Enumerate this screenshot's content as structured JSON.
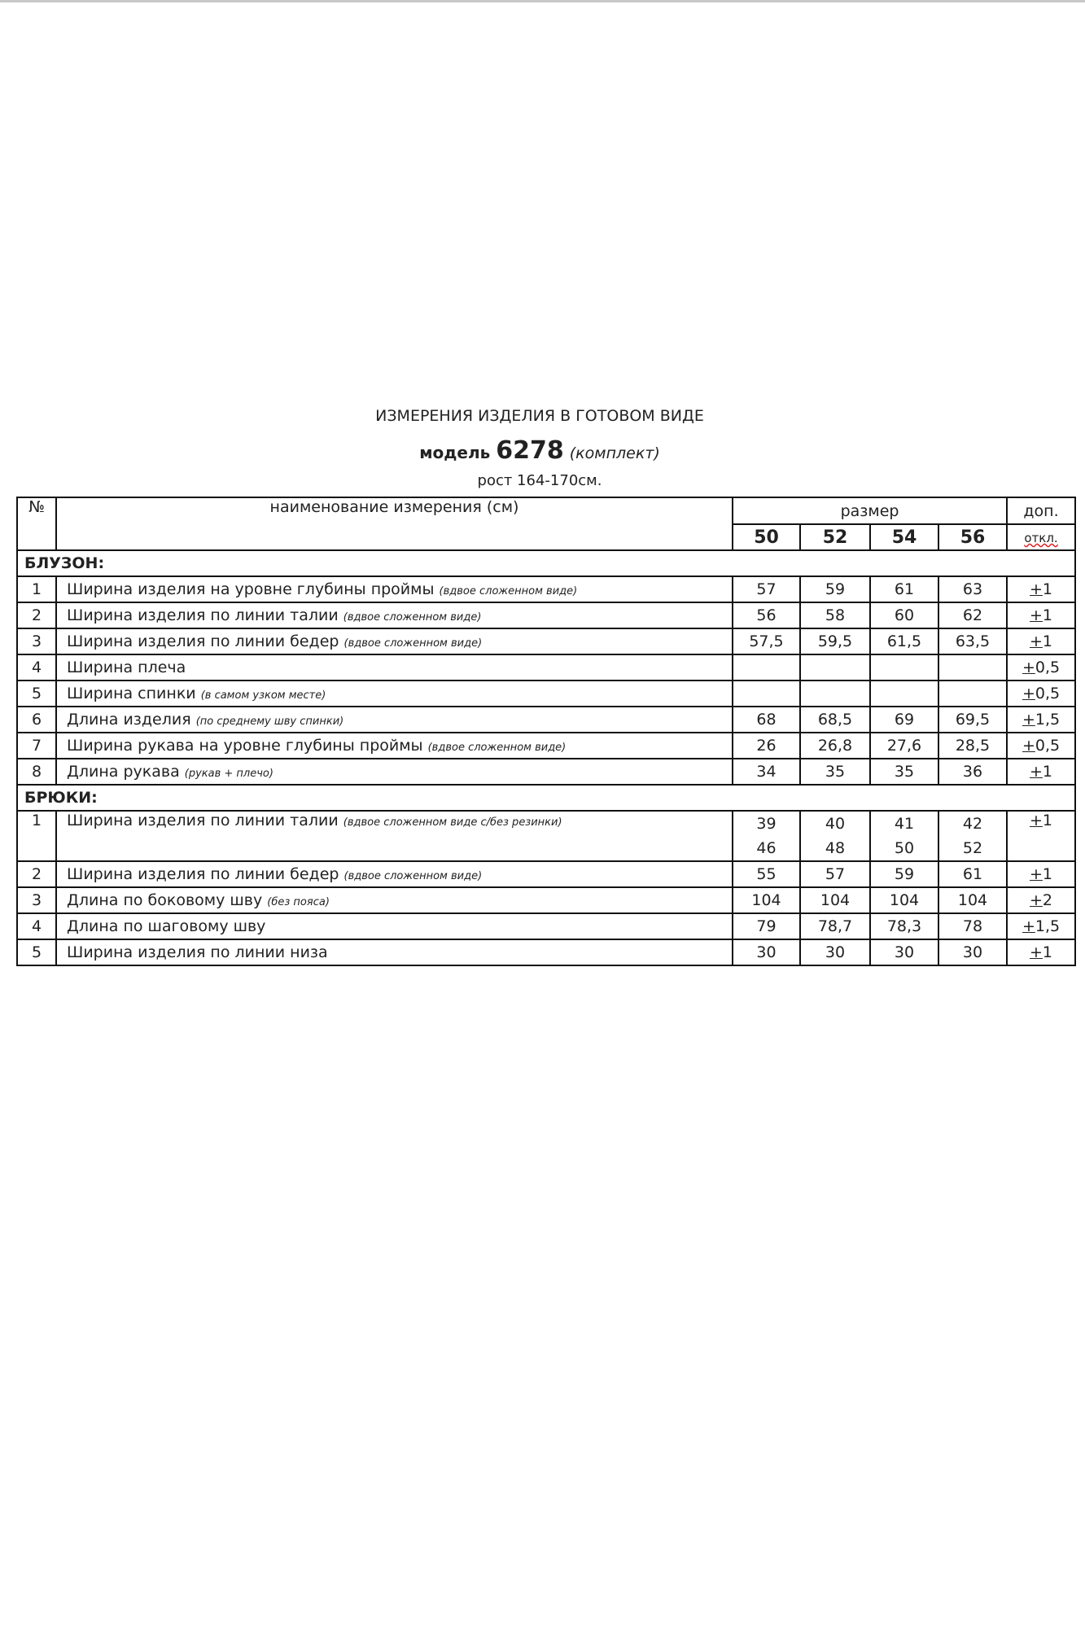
{
  "title": "ИЗМЕРЕНИЯ ИЗДЕЛИЯ В ГОТОВОМ ВИДЕ",
  "model": {
    "prefix": "модель",
    "number": "6278",
    "suffix": "(комплект)"
  },
  "height_note": "рост 164-170см.",
  "table": {
    "header": {
      "no": "№",
      "name": "наименование измерения (см)",
      "size": "размер",
      "tol_line1": "доп.",
      "tol_line2": "откл.",
      "sizes": [
        "50",
        "52",
        "54",
        "56"
      ]
    },
    "sections": [
      {
        "title": "БЛУЗОН:",
        "rows": [
          {
            "no": "1",
            "name": "Ширина изделия на уровне глубины проймы",
            "note": "(вдвое сложенном виде)",
            "values": [
              "57",
              "59",
              "61",
              "63"
            ],
            "tol": "+1"
          },
          {
            "no": "2",
            "name": "Ширина изделия по линии талии",
            "note": "(вдвое сложенном виде)",
            "values": [
              "56",
              "58",
              "60",
              "62"
            ],
            "tol": "+1"
          },
          {
            "no": "3",
            "name": "Ширина изделия по линии бедер",
            "note": "(вдвое сложенном виде)",
            "values": [
              "57,5",
              "59,5",
              "61,5",
              "63,5"
            ],
            "tol": "+1"
          },
          {
            "no": "4",
            "name": "Ширина плеча",
            "note": "",
            "values": [
              "",
              "",
              "",
              ""
            ],
            "tol": "+0,5"
          },
          {
            "no": "5",
            "name": "Ширина спинки",
            "note": "(в самом узком месте)",
            "values": [
              "",
              "",
              "",
              ""
            ],
            "tol": "+0,5"
          },
          {
            "no": "6",
            "name": "Длина изделия",
            "note": "(по среднему шву спинки)",
            "values": [
              "68",
              "68,5",
              "69",
              "69,5"
            ],
            "tol": "+1,5"
          },
          {
            "no": "7",
            "name": "Ширина рукава на уровне глубины проймы",
            "note": "(вдвое сложенном виде)",
            "values": [
              "26",
              "26,8",
              "27,6",
              "28,5"
            ],
            "tol": "+0,5"
          },
          {
            "no": "8",
            "name": "Длина рукава",
            "note": "(рукав + плечо)",
            "values": [
              "34",
              "35",
              "35",
              "36"
            ],
            "tol": "+1"
          }
        ]
      },
      {
        "title": "БРЮКИ:",
        "rows": [
          {
            "no": "1",
            "name": "Ширина изделия по линии талии",
            "note": "(вдвое сложенном виде с/без резинки)",
            "values": [
              "39",
              "40",
              "41",
              "42"
            ],
            "values2": [
              "46",
              "48",
              "50",
              "52"
            ],
            "tol": "+1"
          },
          {
            "no": "2",
            "name": "Ширина изделия по линии бедер",
            "note": "(вдвое сложенном виде)",
            "values": [
              "55",
              "57",
              "59",
              "61"
            ],
            "tol": "+1"
          },
          {
            "no": "3",
            "name": "Длина по боковому шву",
            "note": "(без пояса)",
            "values": [
              "104",
              "104",
              "104",
              "104"
            ],
            "tol": "+2"
          },
          {
            "no": "4",
            "name": "Длина по шаговому шву",
            "note": "",
            "values": [
              "79",
              "78,7",
              "78,3",
              "78"
            ],
            "tol": "+1,5"
          },
          {
            "no": "5",
            "name": "Ширина изделия по линии низа",
            "note": "",
            "values": [
              "30",
              "30",
              "30",
              "30"
            ],
            "tol": "+1"
          }
        ]
      }
    ]
  }
}
